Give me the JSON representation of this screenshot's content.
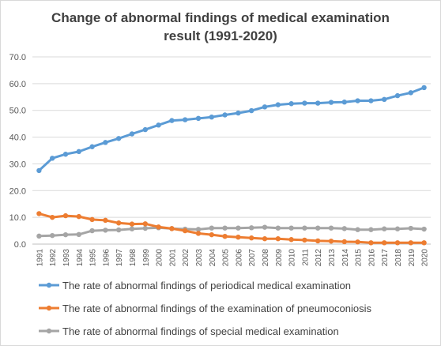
{
  "chart_data": {
    "type": "line",
    "title_lines": [
      "Change of abnormal findings of medical examination",
      "result (1991-2020)"
    ],
    "xlabel": "",
    "ylabel": "",
    "ylim": [
      0,
      70
    ],
    "yticks": [
      "0.0",
      "10.0",
      "20.0",
      "30.0",
      "40.0",
      "50.0",
      "60.0",
      "70.0"
    ],
    "grid": true,
    "legend_position": "bottom",
    "categories": [
      "1991",
      "1992",
      "1993",
      "1994",
      "1995",
      "1996",
      "1997",
      "1998",
      "1999",
      "2000",
      "2001",
      "2002",
      "2003",
      "2004",
      "2005",
      "2006",
      "2007",
      "2008",
      "2009",
      "2010",
      "2011",
      "2012",
      "2013",
      "2014",
      "2015",
      "2016",
      "2017",
      "2018",
      "2019",
      "2020"
    ],
    "series": [
      {
        "name": "The rate of abnormal findings of periodical medical examination",
        "color": "#5b9bd5",
        "values": [
          27.5,
          32.1,
          33.6,
          34.6,
          36.4,
          38.0,
          39.5,
          41.2,
          42.8,
          44.5,
          46.2,
          46.5,
          47.0,
          47.5,
          48.3,
          49.0,
          49.9,
          51.3,
          52.1,
          52.5,
          52.7,
          52.7,
          53.0,
          53.1,
          53.6,
          53.6,
          54.1,
          55.5,
          56.6,
          58.5
        ]
      },
      {
        "name": "The rate of abnormal findings of the examination of pneumoconiosis",
        "color": "#ed7d31",
        "values": [
          11.4,
          10.0,
          10.6,
          10.3,
          9.2,
          8.9,
          7.9,
          7.5,
          7.6,
          6.4,
          5.8,
          5.0,
          4.0,
          3.5,
          2.9,
          2.6,
          2.3,
          2.0,
          2.0,
          1.7,
          1.5,
          1.2,
          1.1,
          0.9,
          0.8,
          0.5,
          0.5,
          0.5,
          0.5,
          0.5
        ]
      },
      {
        "name": "The rate of abnormal findings of special medical examination",
        "color": "#a5a5a5",
        "values": [
          3.0,
          3.2,
          3.5,
          3.6,
          5.0,
          5.2,
          5.3,
          5.7,
          5.9,
          6.1,
          5.8,
          5.6,
          5.5,
          6.0,
          6.0,
          6.0,
          6.1,
          6.3,
          6.0,
          6.0,
          6.0,
          6.0,
          6.0,
          5.8,
          5.4,
          5.4,
          5.7,
          5.7,
          5.9,
          5.6
        ]
      }
    ]
  }
}
